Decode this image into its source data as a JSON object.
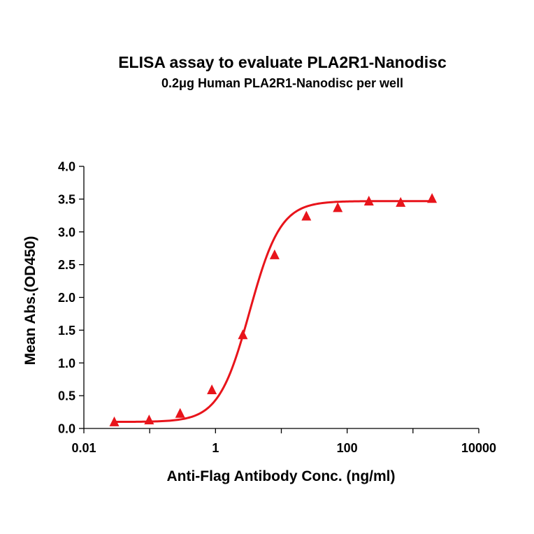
{
  "chart_data": {
    "type": "scatter",
    "title": "ELISA assay to evaluate PLA2R1-Nanodisc",
    "subtitle": "0.2μg Human PLA2R1-Nanodisc per well",
    "xlabel": "Anti-Flag Antibody Conc. (ng/ml)",
    "ylabel": "Mean Abs.(OD450)",
    "x_scale": "log",
    "xlim": [
      0.01,
      10000
    ],
    "ylim": [
      0,
      4.0
    ],
    "x_ticks": [
      0.01,
      1,
      100,
      10000
    ],
    "x_tick_labels": [
      "0.01",
      "1",
      "100",
      "10000"
    ],
    "y_ticks": [
      0,
      0.5,
      1.0,
      1.5,
      2.0,
      2.5,
      3.0,
      3.5,
      4.0
    ],
    "y_tick_labels": [
      "0.0",
      "0.5",
      "1.0",
      "1.5",
      "2.0",
      "2.5",
      "3.0",
      "3.5",
      "4.0"
    ],
    "grid": false,
    "legend": "none",
    "marker": "triangle",
    "color": "#e8141b",
    "series": [
      {
        "x": [
          0.029,
          0.098,
          0.29,
          0.88,
          2.6,
          7.9,
          24,
          72,
          214,
          650,
          1950
        ],
        "y": [
          0.09,
          0.12,
          0.22,
          0.58,
          1.42,
          2.64,
          3.23,
          3.36,
          3.46,
          3.44,
          3.5
        ],
        "fit": "4PL",
        "fit_params": {
          "bottom": 0.1,
          "top": 3.47,
          "ec50": 3.3,
          "hill": 1.85
        }
      }
    ]
  }
}
